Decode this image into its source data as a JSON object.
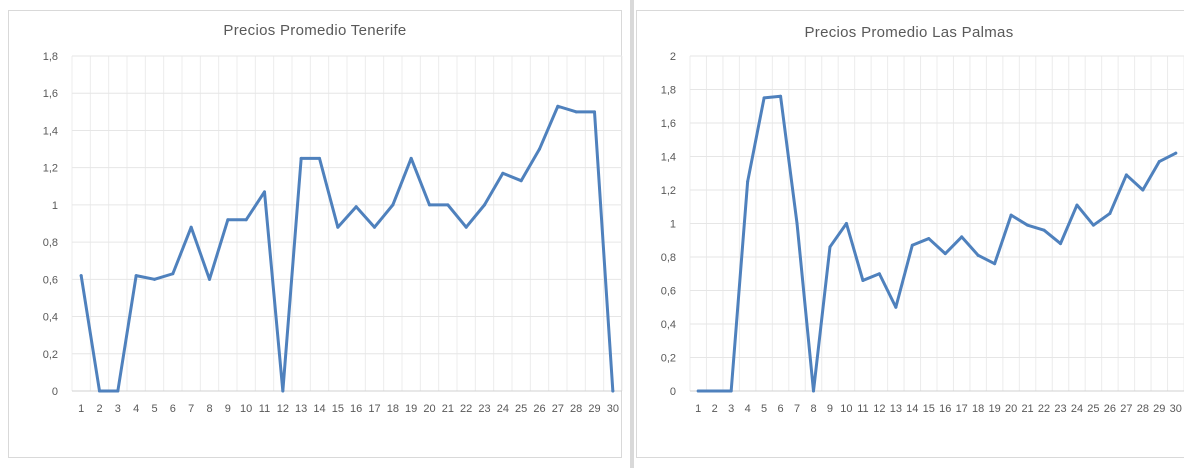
{
  "chart_data": [
    {
      "type": "line",
      "title": "Precios Promedio Tenerife",
      "xlabel": "",
      "ylabel": "",
      "x": [
        "1",
        "2",
        "3",
        "4",
        "5",
        "6",
        "7",
        "8",
        "9",
        "10",
        "11",
        "12",
        "13",
        "14",
        "15",
        "16",
        "17",
        "18",
        "19",
        "20",
        "21",
        "22",
        "23",
        "24",
        "25",
        "26",
        "27",
        "28",
        "29",
        "30"
      ],
      "values": [
        0.62,
        0,
        0,
        0.62,
        0.6,
        0.63,
        0.88,
        0.6,
        0.92,
        0.92,
        1.07,
        0,
        1.25,
        1.25,
        0.88,
        0.99,
        0.88,
        1.0,
        1.25,
        1.0,
        1.0,
        0.88,
        1.0,
        1.17,
        1.13,
        1.3,
        1.53,
        1.5,
        1.5,
        0
      ],
      "ylim": [
        0,
        1.8
      ],
      "yticks": [
        "0",
        "0,2",
        "0,4",
        "0,6",
        "0,8",
        "1",
        "1,2",
        "1,4",
        "1,6",
        "1,8"
      ],
      "grid": true,
      "color": "#4f81bd"
    },
    {
      "type": "line",
      "title": "Precios Promedio Las Palmas",
      "xlabel": "",
      "ylabel": "",
      "x": [
        "1",
        "2",
        "3",
        "4",
        "5",
        "6",
        "7",
        "8",
        "9",
        "10",
        "11",
        "12",
        "13",
        "14",
        "15",
        "16",
        "17",
        "18",
        "19",
        "20",
        "21",
        "22",
        "23",
        "24",
        "25",
        "26",
        "27",
        "28",
        "29",
        "30"
      ],
      "values": [
        0,
        0,
        0,
        1.25,
        1.75,
        1.76,
        1.0,
        0,
        0.86,
        1.0,
        0.66,
        0.7,
        0.5,
        0.87,
        0.91,
        0.82,
        0.92,
        0.81,
        0.76,
        1.05,
        0.99,
        0.96,
        0.88,
        1.11,
        0.99,
        1.06,
        1.29,
        1.2,
        1.37,
        1.42
      ],
      "ylim": [
        0,
        2
      ],
      "yticks": [
        "0",
        "0,2",
        "0,4",
        "0,6",
        "0,8",
        "1",
        "1,2",
        "1,4",
        "1,6",
        "1,8",
        "2"
      ],
      "grid": true,
      "color": "#4f81bd"
    }
  ]
}
